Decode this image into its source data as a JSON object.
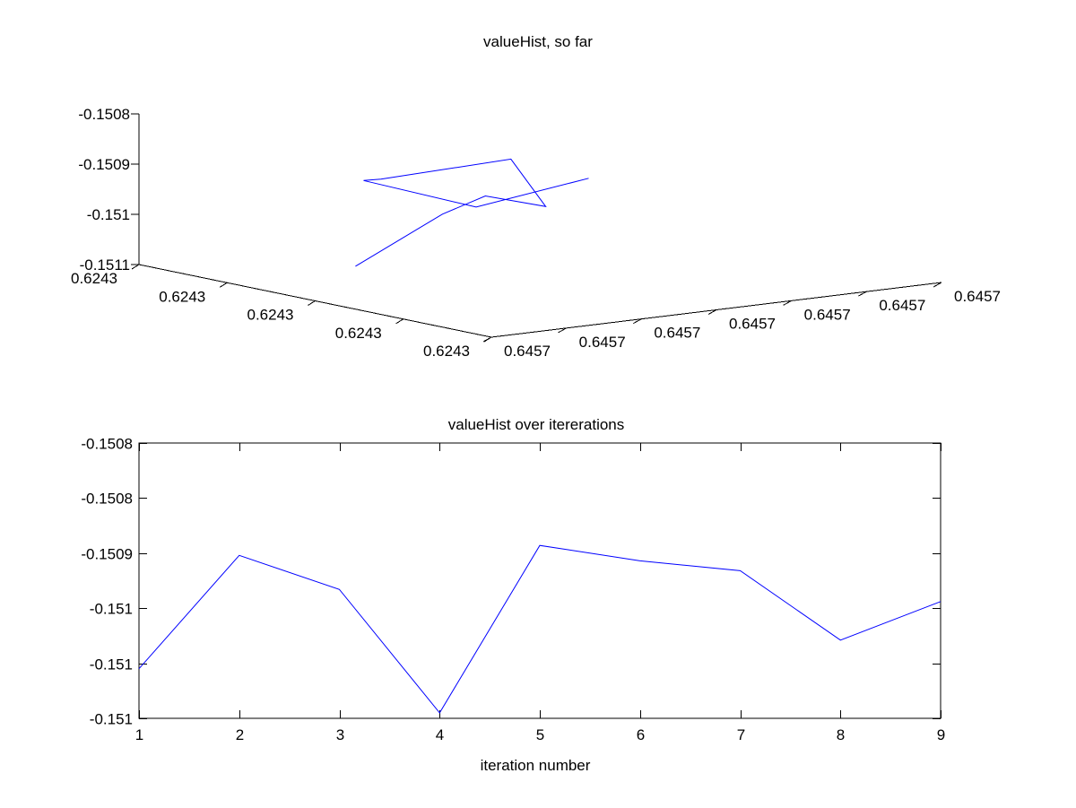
{
  "chart_data": [
    {
      "type": "line",
      "view": "3d",
      "title": "valueHist, so far",
      "x_tick_labels": [
        "0.6243",
        "0.6243",
        "0.6243",
        "0.6243",
        "0.6243"
      ],
      "y_tick_labels": [
        "0.6457",
        "0.6457",
        "0.6457",
        "0.6457",
        "0.6457",
        "0.6457",
        "0.6457"
      ],
      "z_tick_labels": [
        "-0.1508",
        "-0.1509",
        "-0.151",
        "-0.1511"
      ],
      "series": [
        {
          "color": "#0000ff",
          "x": [
            0.62428,
            0.62433,
            0.62429,
            0.62426,
            0.62424,
            0.62423,
            0.62422,
            0.62422,
            0.62422
          ],
          "y": [
            0.64572,
            0.64572,
            0.64573,
            0.64574,
            0.64574,
            0.64573,
            0.64573,
            0.64574,
            0.64575
          ],
          "z": [
            -0.15106,
            -0.15092,
            -0.15094,
            -0.15101,
            -0.15093,
            -0.15095,
            -0.15096,
            -0.15104,
            -0.15101
          ]
        }
      ],
      "grid": false
    },
    {
      "type": "line",
      "title": "valueHist over itererations",
      "xlabel": "iteration number",
      "ylabel": "",
      "x": [
        1,
        2,
        3,
        4,
        5,
        6,
        7,
        8,
        9
      ],
      "xlim": [
        1,
        9
      ],
      "x_tick_labels": [
        "1",
        "2",
        "3",
        "4",
        "5",
        "6",
        "7",
        "8",
        "9"
      ],
      "ylim": [
        -0.15105,
        -0.1508
      ],
      "y_ticks": [
        -0.1508,
        -0.15085,
        -0.1509,
        -0.15095,
        -0.151,
        -0.15105
      ],
      "y_tick_labels": [
        "-0.1508",
        "-0.1508",
        "-0.1509",
        "-0.151",
        "-0.151",
        "-0.151"
      ],
      "series": [
        {
          "color": "#0000ff",
          "values": [
            -0.151005,
            -0.150902,
            -0.150933,
            -0.151045,
            -0.150893,
            -0.150907,
            -0.150916,
            -0.150979,
            -0.150944
          ]
        }
      ],
      "grid": false
    }
  ]
}
